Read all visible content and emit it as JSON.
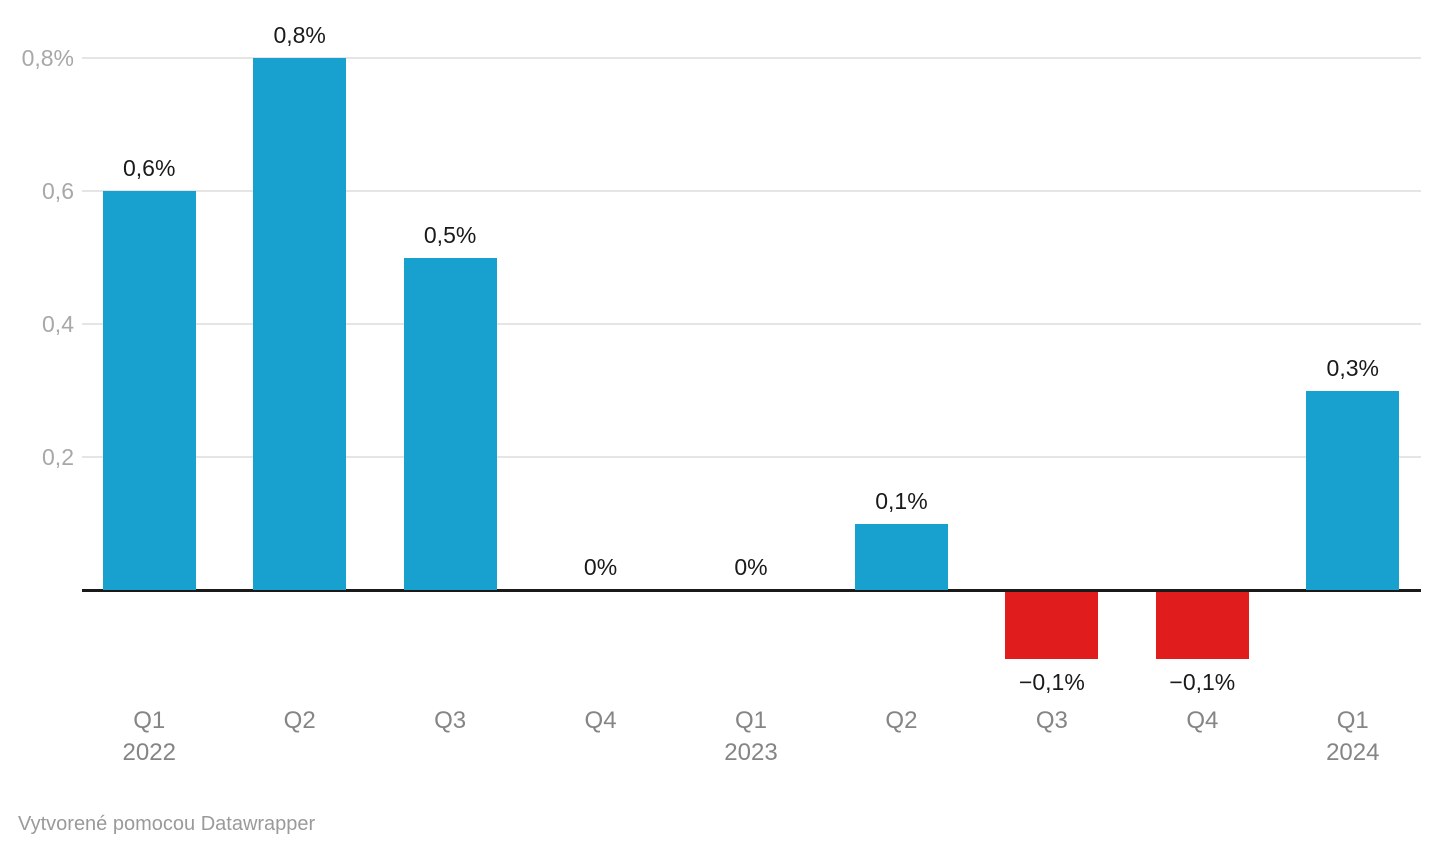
{
  "chart_data": {
    "type": "bar",
    "title": "",
    "xlabel": "",
    "ylabel": "",
    "unit": "%",
    "decimal_style": "comma",
    "grid": true,
    "ylim": [
      -0.1,
      0.85
    ],
    "categories": [
      "Q1 2022",
      "Q2 2022",
      "Q3 2022",
      "Q4 2022",
      "Q1 2023",
      "Q2 2023",
      "Q3 2023",
      "Q4 2023",
      "Q1 2024"
    ],
    "values": [
      0.6,
      0.8,
      0.5,
      0,
      0,
      0.1,
      -0.1,
      -0.1,
      0.3
    ],
    "points": [
      {
        "quarter": "Q1",
        "year": "2022",
        "value": 0.6,
        "label": "0,6%"
      },
      {
        "quarter": "Q2",
        "year": "",
        "value": 0.8,
        "label": "0,8%"
      },
      {
        "quarter": "Q3",
        "year": "",
        "value": 0.5,
        "label": "0,5%"
      },
      {
        "quarter": "Q4",
        "year": "",
        "value": 0,
        "label": "0%"
      },
      {
        "quarter": "Q1",
        "year": "2023",
        "value": 0,
        "label": "0%"
      },
      {
        "quarter": "Q2",
        "year": "",
        "value": 0.1,
        "label": "0,1%"
      },
      {
        "quarter": "Q3",
        "year": "",
        "value": -0.1,
        "label": "−0,1%"
      },
      {
        "quarter": "Q4",
        "year": "",
        "value": -0.1,
        "label": "−0,1%"
      },
      {
        "quarter": "Q1",
        "year": "2024",
        "value": 0.3,
        "label": "0,3%"
      }
    ],
    "yticks": [
      {
        "value": 0.2,
        "label": "0,2"
      },
      {
        "value": 0.4,
        "label": "0,4"
      },
      {
        "value": 0.6,
        "label": "0,6"
      },
      {
        "value": 0.8,
        "label": "0,8%"
      }
    ],
    "colors": {
      "positive": "#18a0ce",
      "negative": "#e01c1c",
      "gridline": "#e5e5e5",
      "baseline": "#1a1a1a",
      "ytick_text": "#a8a8a8",
      "xtick_text": "#858585",
      "value_text": "#1a1a1a",
      "background": "#ffffff"
    }
  },
  "footer": {
    "credit": "Vytvorené pomocou Datawrapper"
  }
}
